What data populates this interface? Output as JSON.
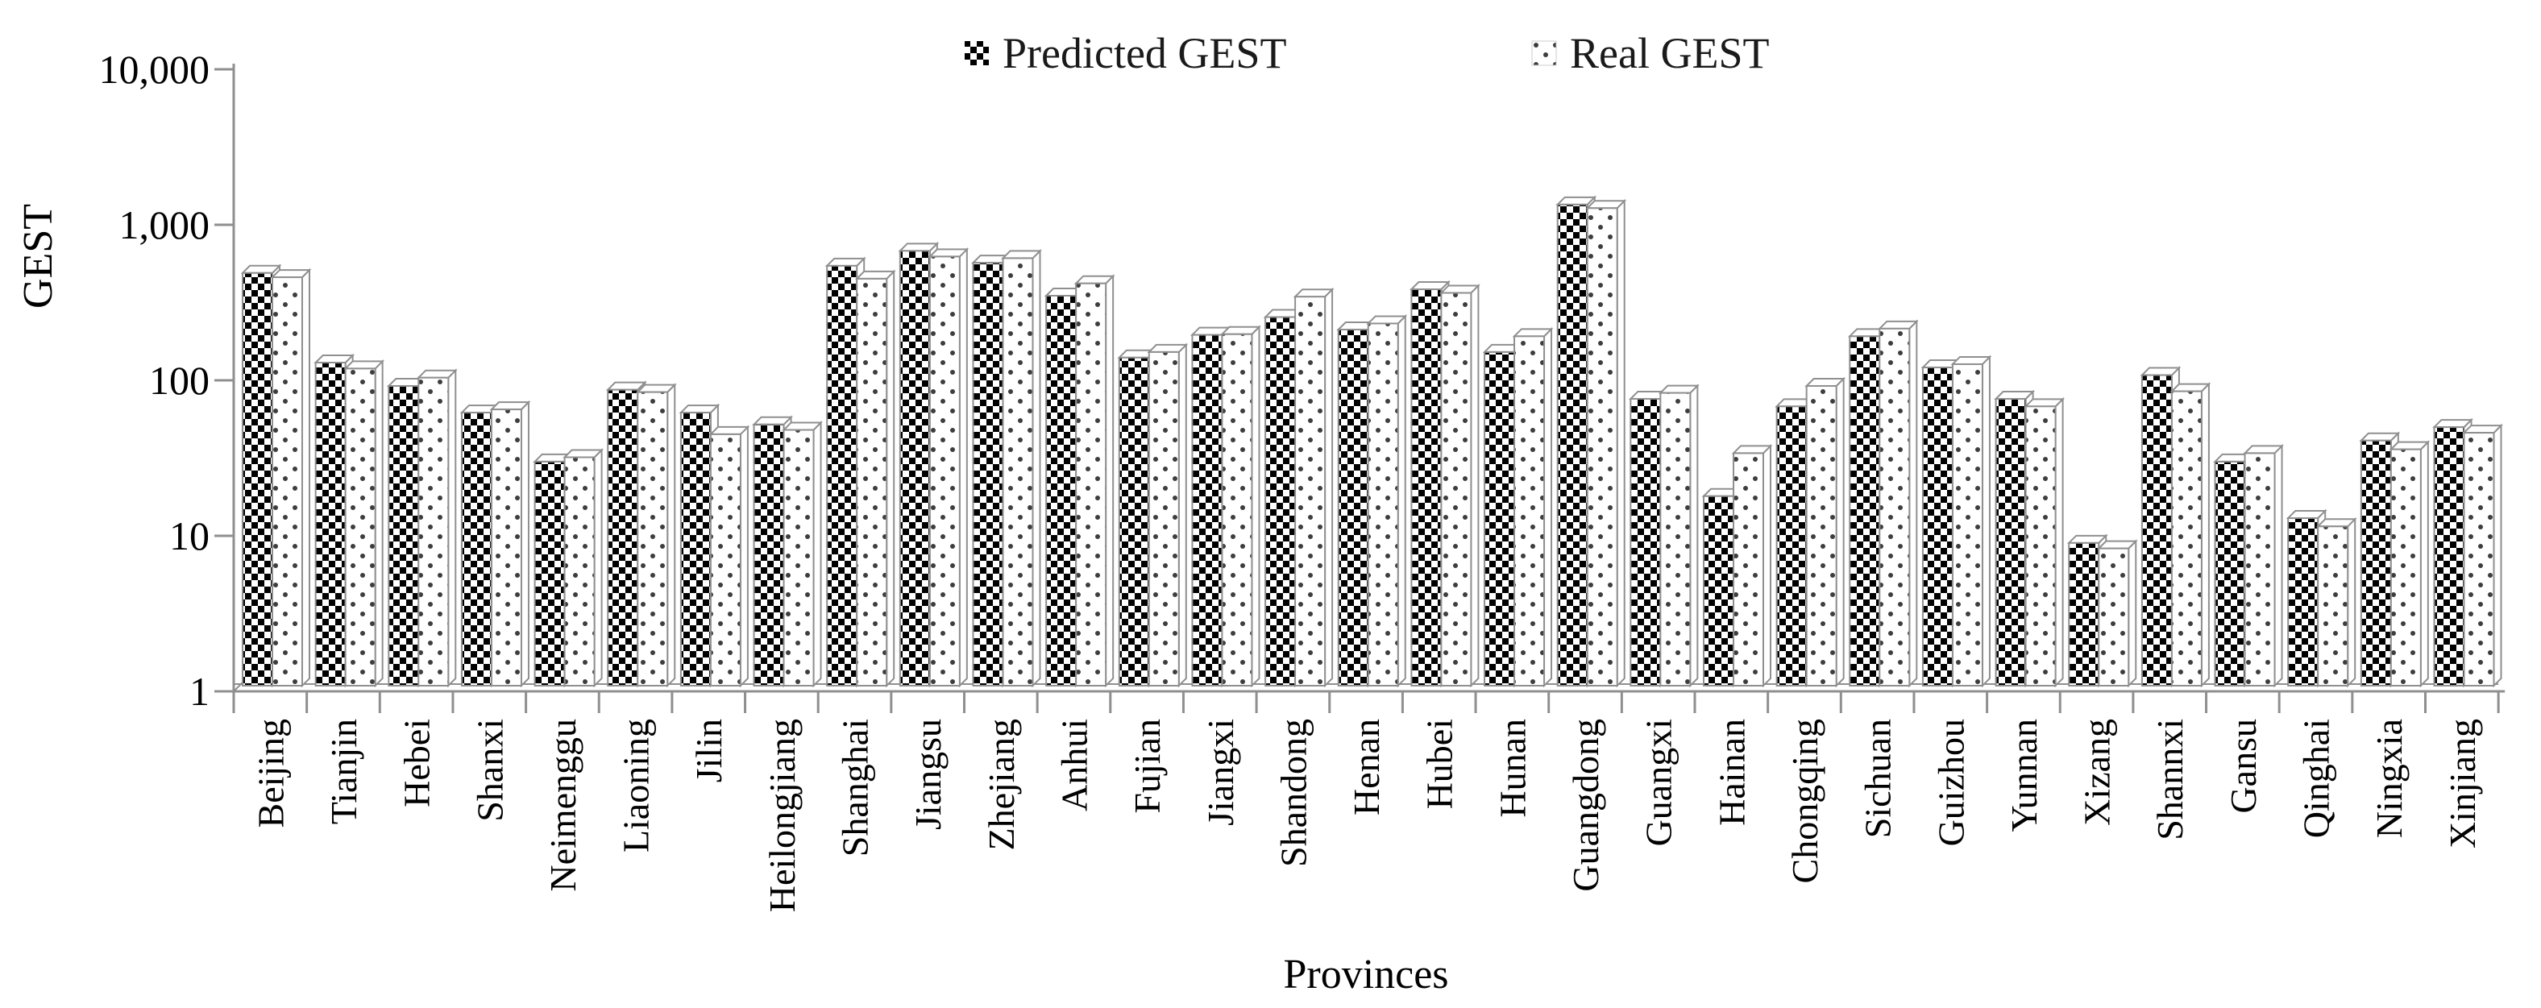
{
  "figure": {
    "y_axis_title": "GEST",
    "x_axis_title": "Provinces"
  },
  "legend": {
    "predicted_label": "Predicted GEST",
    "real_label": "Real GEST"
  },
  "colors": {
    "background": "#ffffff",
    "text": "#000000",
    "axis_line": "#8f8f8f",
    "bar_border": "#8f8f8f",
    "checker_fill": "#000000",
    "dot_fill": "#3d3d3d",
    "bar_side_fill": "#ffffff"
  },
  "chart_data": {
    "type": "bar",
    "scale": "log",
    "title": "",
    "xlabel": "Provinces",
    "ylabel": "GEST",
    "ylim": [
      1,
      10000
    ],
    "grid": false,
    "legend_position": "top-center",
    "ytick_values": [
      1,
      10,
      100,
      1000,
      10000
    ],
    "ytick_labels": [
      "1",
      "10",
      "100",
      "1,000",
      "10,000"
    ],
    "categories": [
      "Beijing",
      "Tianjin",
      "Hebei",
      "Shanxi",
      "Neimenggu",
      "Liaoning",
      "Jilin",
      "Heilongjiang",
      "Shanghai",
      "Jiangsu",
      "Zhejiang",
      "Anhui",
      "Fujian",
      "Jiangxi",
      "Shandong",
      "Henan",
      "Hubei",
      "Hunan",
      "Guangdong",
      "Guangxi",
      "Hainan",
      "Chongqing",
      "Sichuan",
      "Guizhou",
      "Yunnan",
      "Xizang",
      "Shannxi",
      "Gansu",
      "Qinghai",
      "Ningxia",
      "Xinjiang"
    ],
    "series": [
      {
        "name": "Predicted GEST",
        "pattern": "checkerboard",
        "values": [
          490,
          130,
          92,
          62,
          30,
          87,
          62,
          52,
          545,
          680,
          570,
          350,
          140,
          196,
          255,
          212,
          385,
          152,
          1350,
          76,
          18,
          68,
          192,
          121,
          76,
          9,
          108,
          30,
          13,
          41,
          50
        ]
      },
      {
        "name": "Real GEST",
        "pattern": "dots",
        "values": [
          460,
          119,
          104,
          65,
          32,
          84,
          45,
          48,
          450,
          625,
          610,
          420,
          152,
          198,
          345,
          232,
          365,
          192,
          1280,
          83,
          34,
          92,
          215,
          127,
          68,
          8.3,
          85,
          34,
          11.5,
          36,
          46
        ]
      }
    ]
  }
}
